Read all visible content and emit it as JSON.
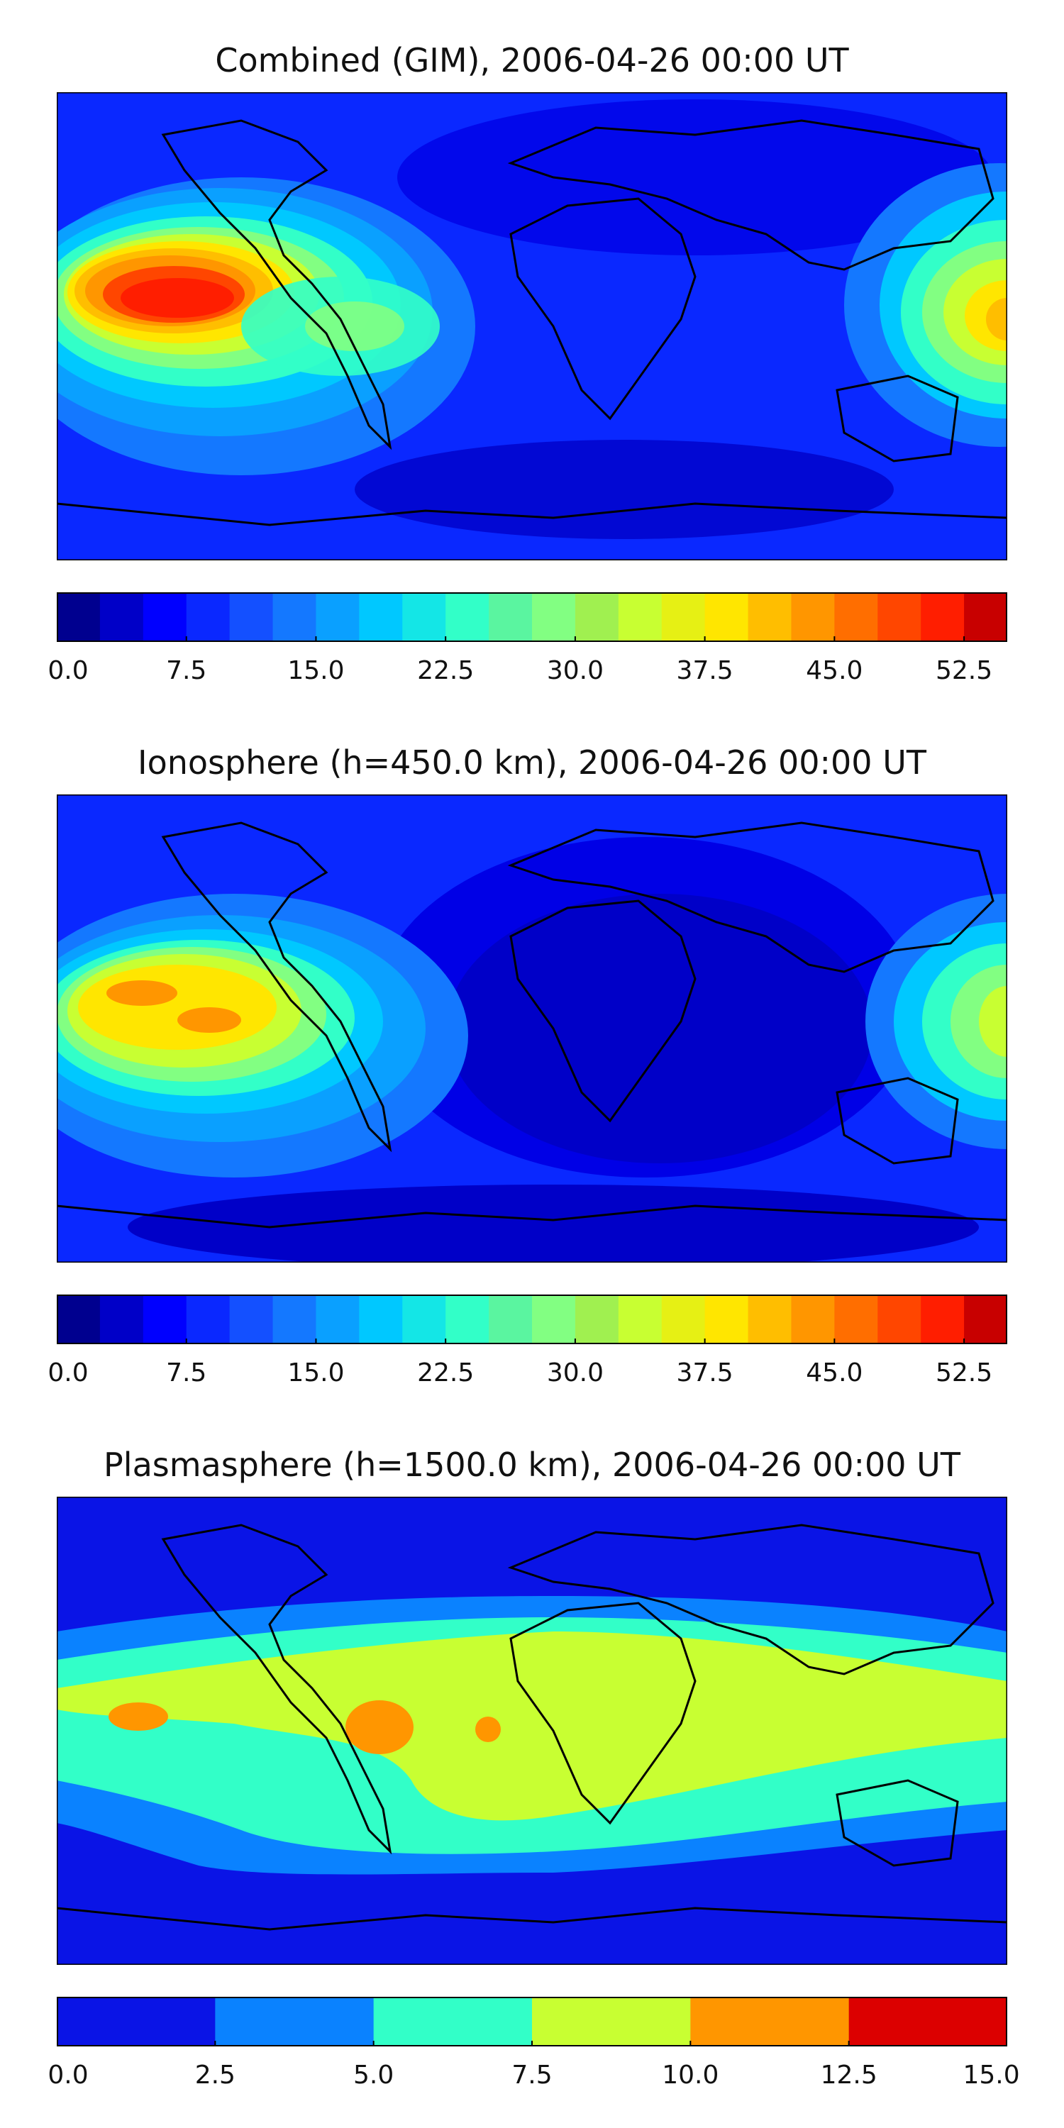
{
  "panels": [
    {
      "title": "Combined (GIM), 2006-04-26 00:00 UT",
      "colorbar": {
        "min": 0.0,
        "max": 55.0,
        "step": 2.5,
        "ticks": [
          "0.0",
          "7.5",
          "15.0",
          "22.5",
          "30.0",
          "37.5",
          "45.0",
          "52.5"
        ],
        "tick_values": [
          0,
          7.5,
          15,
          22.5,
          30,
          37.5,
          45,
          52.5
        ]
      }
    },
    {
      "title": "Ionosphere  (h=450.0 km), 2006-04-26 00:00 UT",
      "colorbar": {
        "min": 0.0,
        "max": 55.0,
        "step": 2.5,
        "ticks": [
          "0.0",
          "7.5",
          "15.0",
          "22.5",
          "30.0",
          "37.5",
          "45.0",
          "52.5"
        ],
        "tick_values": [
          0,
          7.5,
          15,
          22.5,
          30,
          37.5,
          45,
          52.5
        ]
      }
    },
    {
      "title": "Plasmasphere (h=1500.0 km), 2006-04-26 00:00 UT",
      "colorbar": {
        "min": 0.0,
        "max": 15.0,
        "step": 2.5,
        "ticks": [
          "0.0",
          "2.5",
          "5.0",
          "7.5",
          "10.0",
          "12.5",
          "15.0"
        ],
        "tick_values": [
          0,
          2.5,
          5,
          7.5,
          10,
          12.5,
          15
        ]
      }
    }
  ],
  "colors": {
    "jet_22": [
      "#00008f",
      "#0000c8",
      "#0000ff",
      "#0a28ff",
      "#1450ff",
      "#1478ff",
      "#0aa0ff",
      "#00c8ff",
      "#14e6e6",
      "#32ffc8",
      "#5af5a0",
      "#82ff82",
      "#a0f050",
      "#c8ff32",
      "#e6f014",
      "#ffe600",
      "#ffbe00",
      "#ff9600",
      "#ff6e00",
      "#ff4600",
      "#ff1e00",
      "#c80000"
    ],
    "plasma_6": [
      "#0a14e6",
      "#0a82ff",
      "#32ffc8",
      "#c8ff32",
      "#ff9600",
      "#dc0000"
    ],
    "coastline": "#000000"
  }
}
